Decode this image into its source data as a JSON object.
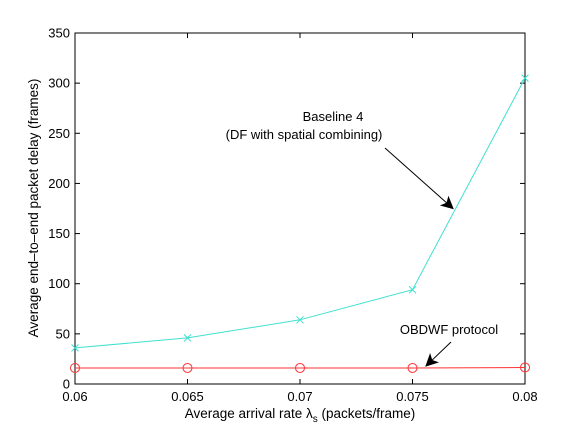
{
  "chart_data": {
    "type": "line",
    "title": "",
    "xlabel": "Average arrival rate λ_s (packets/frame)",
    "xlabel_parts": {
      "pre": "Average arrival rate ",
      "symbol": "λ",
      "sub": "s",
      "post": " (packets/frame)"
    },
    "ylabel": "Average end–to–end packet delay (frames)",
    "xlim": [
      0.06,
      0.08
    ],
    "ylim": [
      0,
      350
    ],
    "xticks": [
      "0.06",
      "0.065",
      "0.07",
      "0.075",
      "0.08"
    ],
    "yticks": [
      "0",
      "50",
      "100",
      "150",
      "200",
      "250",
      "300",
      "350"
    ],
    "grid": false,
    "legend": "none",
    "series": [
      {
        "key": "baseline4",
        "color": "#40e0d0",
        "marker": "x",
        "x": [
          0.06,
          0.065,
          0.07,
          0.075,
          0.08
        ],
        "y": [
          36,
          46,
          64,
          94,
          305
        ]
      },
      {
        "key": "obdwf",
        "color": "#ff3333",
        "marker": "o",
        "x": [
          0.06,
          0.065,
          0.07,
          0.075,
          0.08
        ],
        "y": [
          16,
          16,
          16,
          16,
          16.5
        ]
      }
    ],
    "annotations": [
      {
        "key": "baseline4",
        "lines": [
          "Baseline 4",
          "(DF with spatial combining)"
        ],
        "arrow_to": [
          0.0768,
          175
        ]
      },
      {
        "key": "obdwf",
        "lines": [
          "OBDWF protocol"
        ],
        "arrow_to": [
          0.0756,
          18
        ]
      }
    ]
  }
}
